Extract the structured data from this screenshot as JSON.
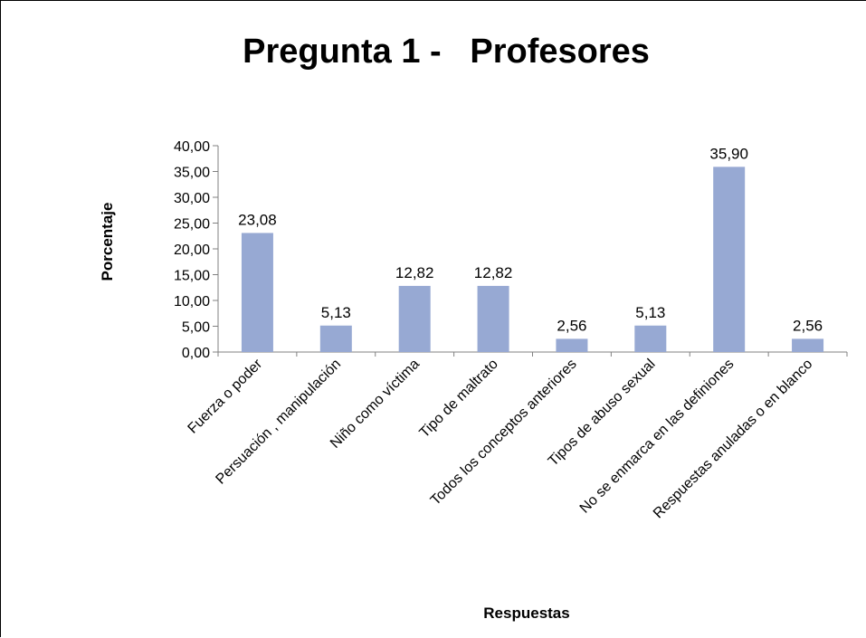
{
  "colors": {
    "bar": "#97a9d3",
    "axis": "#808080",
    "background": "#ffffff"
  },
  "chart_data": {
    "type": "bar",
    "title": "Pregunta 1 -   Profesores",
    "xlabel": "Respuestas",
    "ylabel": "Porcentaje",
    "categories": [
      "Fuerza o poder",
      "Persuación , manipulación",
      "Niño como víctima",
      "Tipo de maltrato",
      "Todos los conceptos anteriores",
      "Tipos de abuso sexual",
      "No se enmarca en las definiones",
      "Respuestas anuladas o en blanco"
    ],
    "values": [
      23.08,
      5.13,
      12.82,
      12.82,
      2.56,
      5.13,
      35.9,
      2.56
    ],
    "data_labels": [
      "23,08",
      "5,13",
      "12,82",
      "12,82",
      "2,56",
      "5,13",
      "35,90",
      "2,56"
    ],
    "ylim": [
      0,
      40
    ],
    "yticks": [
      0,
      5,
      10,
      15,
      20,
      25,
      30,
      35,
      40
    ],
    "ytick_labels": [
      "0,00",
      "5,00",
      "10,00",
      "15,00",
      "20,00",
      "25,00",
      "30,00",
      "35,00",
      "40,00"
    ],
    "grid": false,
    "legend": "none"
  }
}
